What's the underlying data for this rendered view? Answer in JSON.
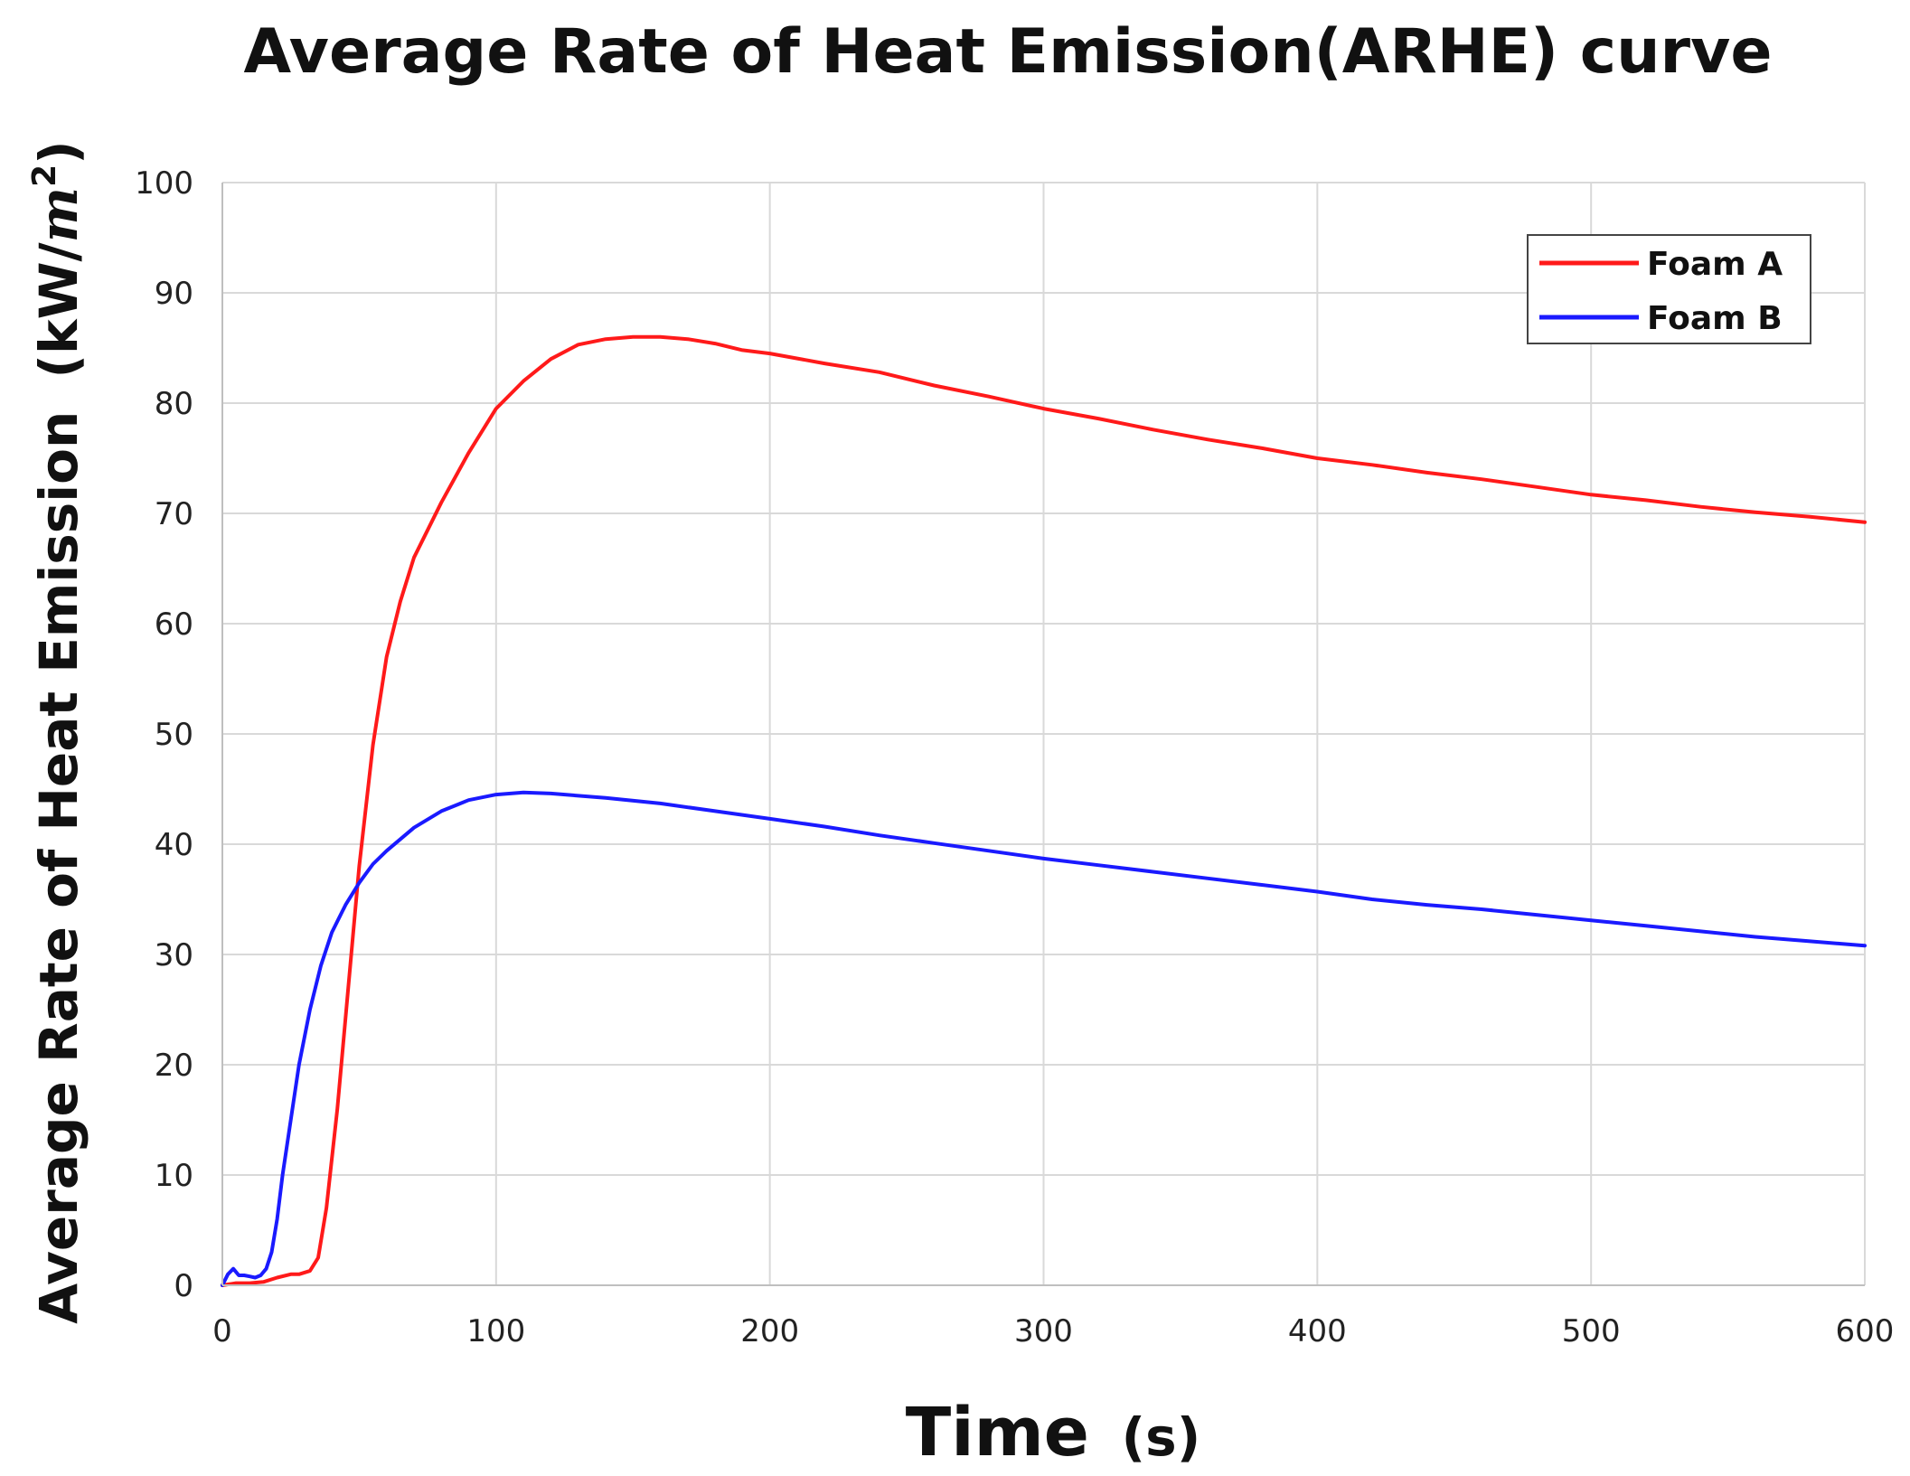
{
  "chart_data": {
    "type": "line",
    "title": "Average Rate of Heat Emission(ARHE) curve",
    "xlabel_main": "Time",
    "xlabel_unit": "(s)",
    "ylabel_main": "Average Rate of Heat Emission",
    "ylabel_unit_prefix": "(kW/",
    "ylabel_unit_m": "m",
    "ylabel_unit_exp": "2",
    "ylabel_unit_suffix": ")",
    "xlim": [
      0,
      600
    ],
    "ylim": [
      0,
      100
    ],
    "xticks": [
      0,
      100,
      200,
      300,
      400,
      500,
      600
    ],
    "yticks": [
      0,
      10,
      20,
      30,
      40,
      50,
      60,
      70,
      80,
      90,
      100
    ],
    "grid": true,
    "legend_position": "top-right",
    "series": [
      {
        "name": "Foam A",
        "color": "#ff1a1a",
        "points": [
          [
            0,
            0
          ],
          [
            5,
            0.2
          ],
          [
            10,
            0.2
          ],
          [
            15,
            0.3
          ],
          [
            20,
            0.7
          ],
          [
            25,
            1.0
          ],
          [
            28,
            1.0
          ],
          [
            32,
            1.3
          ],
          [
            35,
            2.5
          ],
          [
            38,
            7
          ],
          [
            42,
            16
          ],
          [
            46,
            27
          ],
          [
            50,
            38
          ],
          [
            55,
            49
          ],
          [
            60,
            57
          ],
          [
            65,
            62
          ],
          [
            70,
            66
          ],
          [
            80,
            71
          ],
          [
            90,
            75.5
          ],
          [
            100,
            79.5
          ],
          [
            110,
            82
          ],
          [
            120,
            84
          ],
          [
            130,
            85.3
          ],
          [
            140,
            85.8
          ],
          [
            150,
            86
          ],
          [
            160,
            86
          ],
          [
            170,
            85.8
          ],
          [
            180,
            85.4
          ],
          [
            190,
            84.8
          ],
          [
            200,
            84.5
          ],
          [
            220,
            83.6
          ],
          [
            240,
            82.8
          ],
          [
            260,
            81.6
          ],
          [
            280,
            80.6
          ],
          [
            300,
            79.5
          ],
          [
            320,
            78.6
          ],
          [
            340,
            77.6
          ],
          [
            360,
            76.7
          ],
          [
            380,
            75.9
          ],
          [
            400,
            75.0
          ],
          [
            420,
            74.4
          ],
          [
            440,
            73.7
          ],
          [
            460,
            73.1
          ],
          [
            480,
            72.4
          ],
          [
            500,
            71.7
          ],
          [
            520,
            71.2
          ],
          [
            540,
            70.6
          ],
          [
            560,
            70.1
          ],
          [
            580,
            69.7
          ],
          [
            600,
            69.2
          ]
        ]
      },
      {
        "name": "Foam B",
        "color": "#1a1aff",
        "points": [
          [
            0,
            0
          ],
          [
            2,
            1.0
          ],
          [
            4,
            1.5
          ],
          [
            6,
            0.9
          ],
          [
            8,
            0.9
          ],
          [
            10,
            0.8
          ],
          [
            12,
            0.7
          ],
          [
            14,
            0.9
          ],
          [
            16,
            1.5
          ],
          [
            18,
            3
          ],
          [
            20,
            6
          ],
          [
            22,
            10
          ],
          [
            25,
            15
          ],
          [
            28,
            20
          ],
          [
            32,
            25
          ],
          [
            36,
            29
          ],
          [
            40,
            32
          ],
          [
            45,
            34.5
          ],
          [
            50,
            36.5
          ],
          [
            55,
            38.2
          ],
          [
            60,
            39.4
          ],
          [
            70,
            41.5
          ],
          [
            80,
            43
          ],
          [
            90,
            44
          ],
          [
            100,
            44.5
          ],
          [
            110,
            44.7
          ],
          [
            120,
            44.6
          ],
          [
            140,
            44.2
          ],
          [
            160,
            43.7
          ],
          [
            180,
            43.0
          ],
          [
            200,
            42.3
          ],
          [
            220,
            41.6
          ],
          [
            240,
            40.8
          ],
          [
            260,
            40.1
          ],
          [
            280,
            39.4
          ],
          [
            300,
            38.7
          ],
          [
            320,
            38.1
          ],
          [
            340,
            37.5
          ],
          [
            360,
            36.9
          ],
          [
            380,
            36.3
          ],
          [
            400,
            35.7
          ],
          [
            420,
            35.0
          ],
          [
            440,
            34.5
          ],
          [
            460,
            34.1
          ],
          [
            480,
            33.6
          ],
          [
            500,
            33.1
          ],
          [
            520,
            32.6
          ],
          [
            540,
            32.1
          ],
          [
            560,
            31.6
          ],
          [
            580,
            31.2
          ],
          [
            600,
            30.8
          ]
        ]
      }
    ]
  }
}
